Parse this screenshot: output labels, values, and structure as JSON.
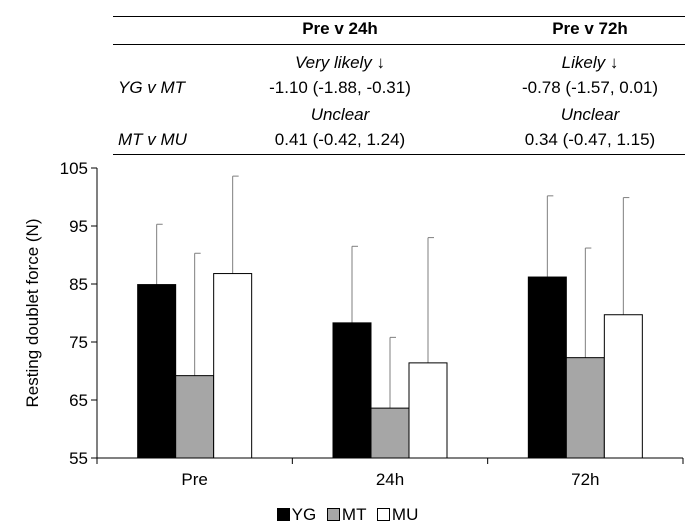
{
  "table": {
    "headers": [
      "Pre v 24h",
      "Pre v 72h"
    ],
    "rows": [
      {
        "comparison": "YG v MT",
        "cells": [
          {
            "qualifier": "Very likely ↓",
            "estimate": "-1.10 (-1.88, -0.31)"
          },
          {
            "qualifier": "Likely ↓",
            "estimate": "-0.78 (-1.57, 0.01)"
          }
        ]
      },
      {
        "comparison": "MT v MU",
        "cells": [
          {
            "qualifier": "Unclear",
            "estimate": "0.41 (-0.42, 1.24)"
          },
          {
            "qualifier": "Unclear",
            "estimate": "0.34 (-0.47, 1.15)"
          }
        ]
      }
    ]
  },
  "chart_data": {
    "type": "bar",
    "ylabel": "Resting doublet force (N)",
    "ylim": [
      55,
      105
    ],
    "yticks": [
      "55",
      "65",
      "75",
      "85",
      "95",
      "105"
    ],
    "categories": [
      "Pre",
      "24h",
      "72h"
    ],
    "series": [
      {
        "name": "YG",
        "color": "#000000",
        "values": [
          84.9,
          78.3,
          86.2
        ],
        "error": [
          10.4,
          13.2,
          14.0
        ]
      },
      {
        "name": "MT",
        "color": "#a6a6a6",
        "values": [
          69.2,
          63.6,
          72.3
        ],
        "error": [
          21.1,
          12.2,
          18.9
        ]
      },
      {
        "name": "MU",
        "color": "#ffffff",
        "values": [
          86.8,
          71.4,
          79.7
        ],
        "error": [
          16.8,
          21.6,
          20.2
        ]
      }
    ],
    "legend_position": "bottom",
    "grid": false
  }
}
